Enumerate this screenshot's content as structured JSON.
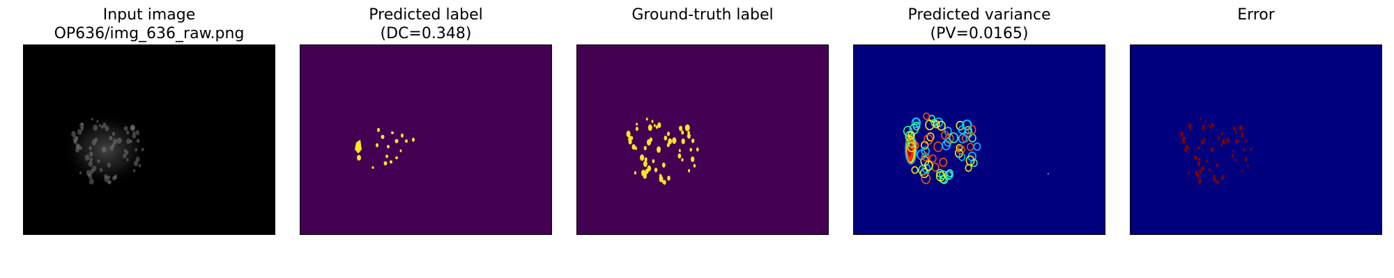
{
  "panels": [
    {
      "title_lines": [
        "Input image",
        "OP636/img_636_raw.png"
      ]
    },
    {
      "title_lines": [
        "Predicted label",
        "(DC=0.348)"
      ]
    },
    {
      "title_lines": [
        "",
        "Ground-truth label"
      ]
    },
    {
      "title_lines": [
        "Predicted variance",
        "(PV=0.0165)"
      ]
    },
    {
      "title_lines": [
        "",
        "Error"
      ]
    }
  ],
  "colors": {
    "input_background": "#000000",
    "label_background": "#440154",
    "label_foreground": "#fde725",
    "jet_background": "#00007f",
    "error_spots": "#7f0000"
  }
}
